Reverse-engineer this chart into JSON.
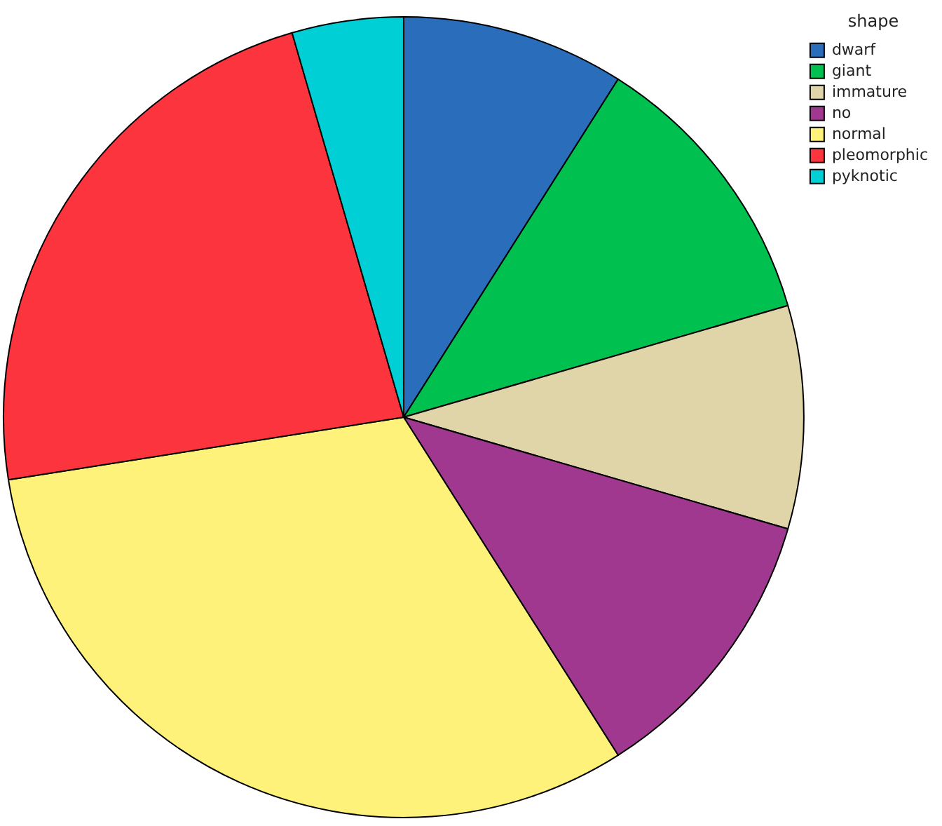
{
  "chart_data": {
    "type": "pie",
    "legend_title": "shape",
    "legend": "top right",
    "categories": [
      "dwarf",
      "giant",
      "immature",
      "no",
      "normal",
      "pleomorphic",
      "pyknotic"
    ],
    "values": [
      9,
      11.5,
      9,
      11.5,
      31.5,
      23,
      4.5
    ],
    "colors": [
      "#2a6ebb",
      "#00c050",
      "#e0d5a8",
      "#a0388f",
      "#fff27a",
      "#fb343d",
      "#00cfd6"
    ]
  }
}
